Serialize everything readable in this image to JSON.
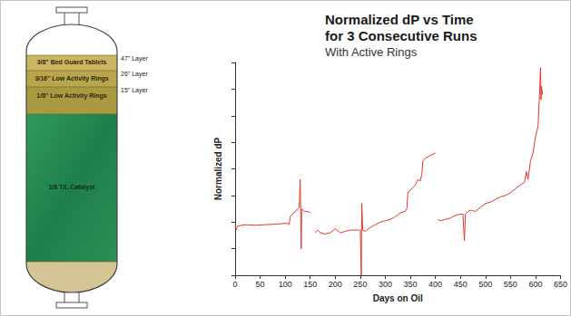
{
  "chart_data": {
    "type": "line",
    "title": "Normalized dP vs Time for 3 Consecutive Runs",
    "subtitle": "With Active Rings",
    "x_label": "Days on Oil",
    "y_label": "Normalized dP",
    "color": "#e2382c",
    "xlim": [
      0,
      650
    ],
    "xticks": [
      0,
      50,
      100,
      150,
      200,
      250,
      300,
      350,
      400,
      450,
      500,
      550,
      600,
      650
    ],
    "ylim": [
      0,
      8
    ],
    "yticks": [
      0,
      1,
      2,
      3,
      4,
      5,
      6,
      7,
      8
    ],
    "tick_labels": "x",
    "grid": false,
    "x": [
      0,
      2,
      5,
      20,
      40,
      60,
      80,
      100,
      105,
      108,
      110,
      115,
      120,
      125,
      128,
      130,
      131,
      132,
      133,
      138,
      145,
      150,
      155,
      160,
      165,
      170,
      180,
      190,
      200,
      210,
      220,
      230,
      240,
      250,
      252,
      253,
      255,
      260,
      270,
      280,
      290,
      300,
      310,
      320,
      330,
      340,
      343,
      345,
      350,
      360,
      365,
      370,
      373,
      375,
      380,
      390,
      400,
      402,
      405,
      410,
      420,
      430,
      440,
      450,
      455,
      458,
      460,
      465,
      470,
      480,
      490,
      500,
      510,
      520,
      530,
      540,
      550,
      560,
      570,
      578,
      582,
      585,
      590,
      595,
      600,
      605,
      608,
      610,
      611,
      612,
      614
    ],
    "values": [
      1.85,
      1.7,
      1.85,
      1.9,
      1.88,
      1.9,
      1.92,
      1.95,
      1.95,
      1.9,
      2.2,
      2.3,
      2.4,
      2.5,
      2.55,
      3.6,
      2.4,
      1.0,
      2.5,
      2.4,
      2.4,
      2.35,
      null,
      1.6,
      1.7,
      1.6,
      1.55,
      1.6,
      1.75,
      1.6,
      1.65,
      1.7,
      1.7,
      1.7,
      0.0,
      2.7,
      1.7,
      1.65,
      1.8,
      1.9,
      2.0,
      2.05,
      2.1,
      2.2,
      2.35,
      2.4,
      2.5,
      3.1,
      3.2,
      3.4,
      3.6,
      3.55,
      3.8,
      4.3,
      4.4,
      4.5,
      4.6,
      null,
      2.1,
      2.05,
      2.1,
      2.15,
      2.25,
      2.3,
      2.3,
      1.3,
      2.3,
      2.4,
      2.45,
      2.4,
      2.55,
      2.7,
      2.75,
      2.85,
      2.95,
      3.0,
      3.1,
      3.25,
      3.4,
      3.5,
      3.9,
      3.6,
      4.3,
      4.6,
      5.2,
      5.6,
      6.8,
      7.8,
      6.6,
      7.1,
      6.8
    ]
  },
  "diagram": {
    "layers": [
      {
        "label": "3/8\" Bed Guard Tablets",
        "depth": "47\" Layer"
      },
      {
        "label": "3/16\" Low Activity Rings",
        "depth": "26\" Layer"
      },
      {
        "label": "1/8\" Low Activity Rings",
        "depth": "15\" Layer"
      }
    ],
    "catalyst": "1/8 T/L Catalyst"
  }
}
